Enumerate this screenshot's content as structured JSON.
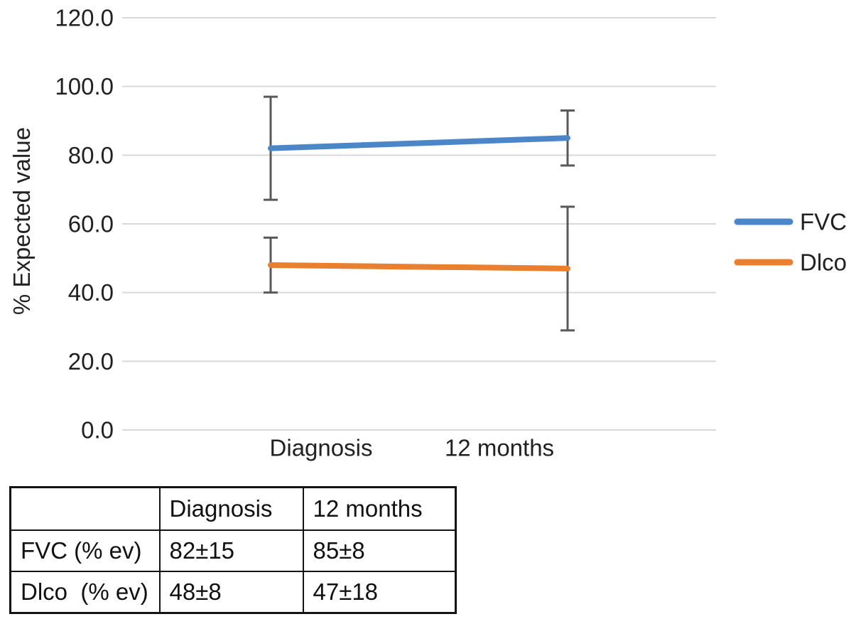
{
  "chart_data": {
    "type": "line",
    "title": "",
    "ylabel": "% Expected value",
    "xlabel": "",
    "categories": [
      "Diagnosis",
      "12 months"
    ],
    "series": [
      {
        "name": "FVC",
        "values": [
          82,
          85
        ],
        "errors": [
          15,
          8
        ],
        "color": "#4a86c8"
      },
      {
        "name": "Dlco",
        "values": [
          48,
          47
        ],
        "errors": [
          8,
          18
        ],
        "color": "#e8802f"
      }
    ],
    "ylim": [
      0,
      120
    ],
    "yticks": [
      "120.0",
      "100.0",
      "80.0",
      "60.0",
      "40.0",
      "20.0",
      "0.0"
    ],
    "grid": true,
    "legend_position": "right",
    "colors": {
      "grid": "#d9d9d9",
      "error_bar": "#595959",
      "text": "#212121"
    }
  },
  "table": {
    "columns": [
      "",
      "Diagnosis",
      "12 months"
    ],
    "rows": [
      {
        "label": "FVC (% ev)",
        "values": [
          "82±15",
          "85±8"
        ]
      },
      {
        "label": "Dlco  (% ev)",
        "values": [
          "48±8",
          "47±18"
        ]
      }
    ]
  }
}
